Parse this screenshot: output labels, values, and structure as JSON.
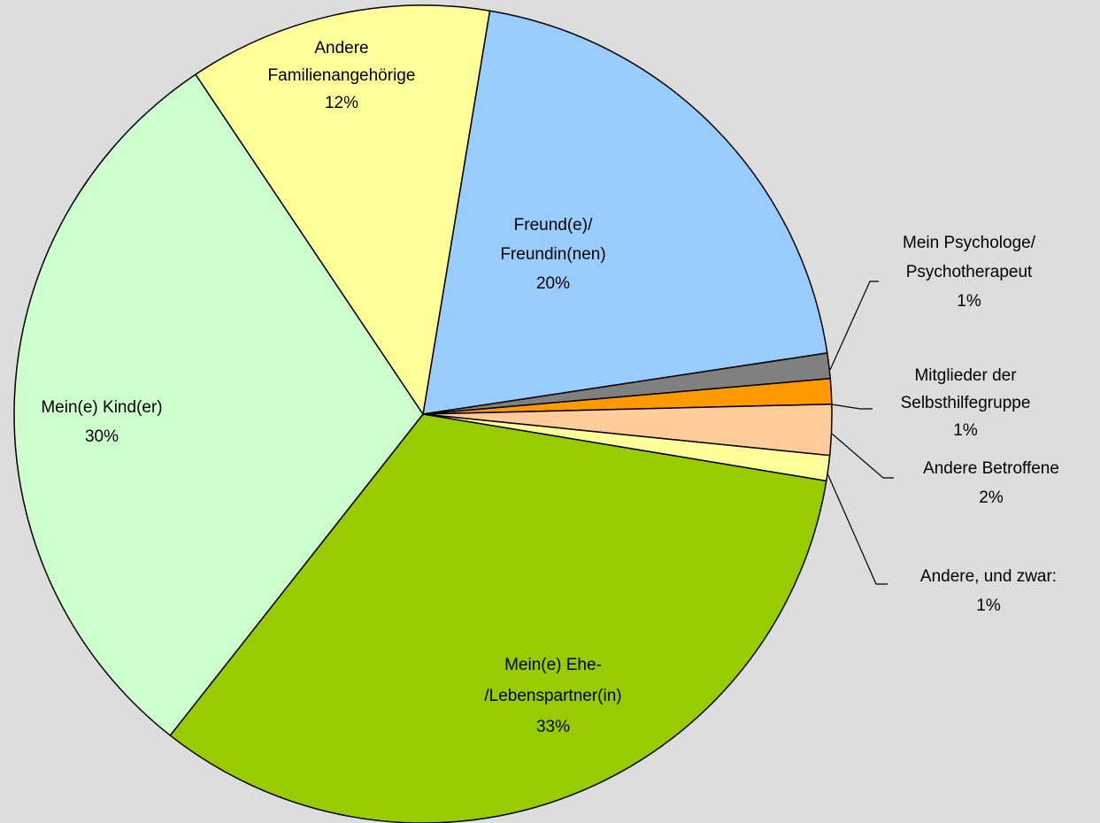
{
  "chart_data": {
    "type": "pie",
    "categories": [
      [
        "Freund(e)/",
        "Freundin(nen)"
      ],
      [
        "Mein Psychologe/",
        "Psychotherapeut"
      ],
      [
        "Mitglieder der",
        "Selbsthilfegruppe"
      ],
      [
        "Andere Betroffene"
      ],
      [
        "Andere, und zwar:"
      ],
      [
        "Mein(e) Ehe-",
        "/Lebenspartner(in)"
      ],
      [
        "Mein(e) Kind(er)"
      ],
      [
        "Andere",
        "Familienangehörige"
      ]
    ],
    "values": [
      20,
      1,
      1,
      2,
      1,
      33,
      30,
      12
    ],
    "value_labels": [
      "20%",
      "1%",
      "1%",
      "2%",
      "1%",
      "33%",
      "30%",
      "12%"
    ],
    "colors": [
      "#99ccff",
      "#808080",
      "#ff9900",
      "#ffcc99",
      "#ffff99",
      "#99cc00",
      "#ccffcc",
      "#ffff99"
    ]
  }
}
